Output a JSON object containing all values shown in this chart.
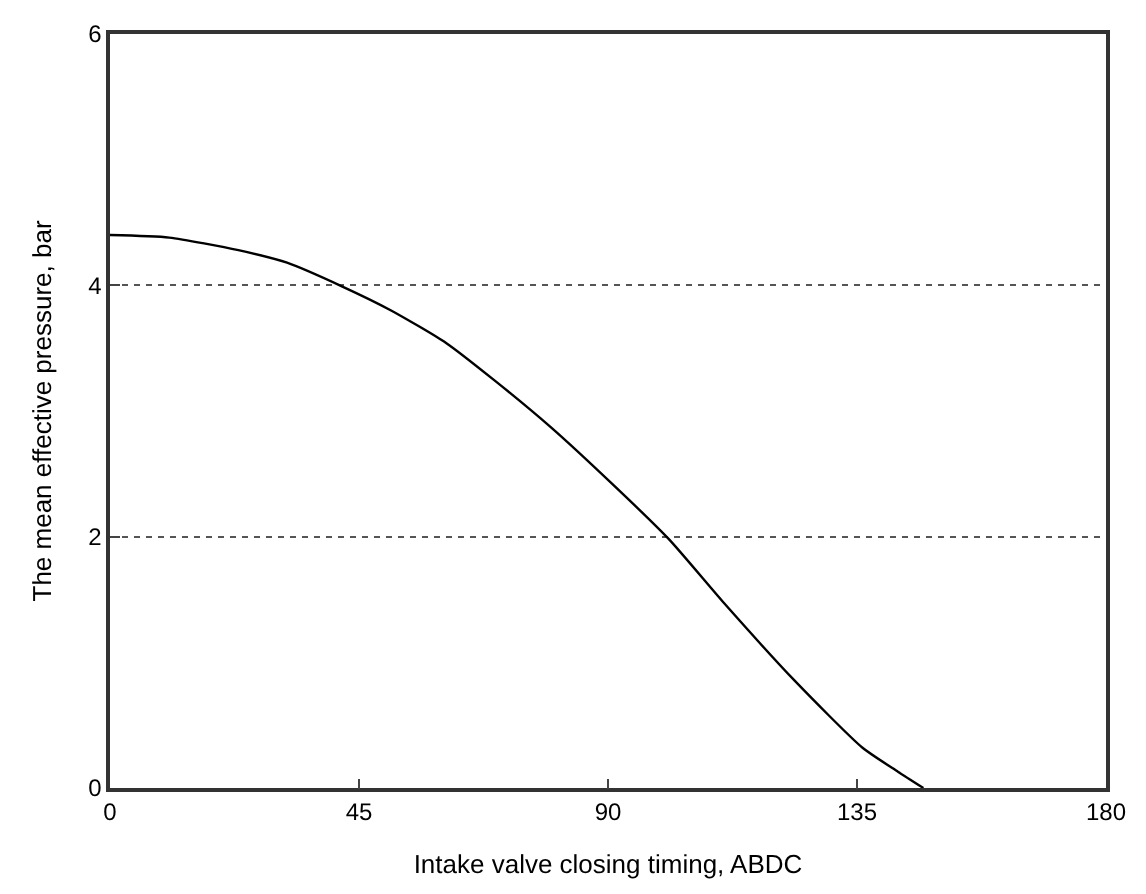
{
  "chart_data": {
    "type": "line",
    "xlabel": "Intake valve closing timing, ABDC",
    "ylabel": "The mean effective pressure, bar",
    "x": [
      0,
      10.7,
      23.2,
      32,
      42,
      50.8,
      60.8,
      69.6,
      79.7,
      91,
      101,
      111,
      123.6,
      136,
      142.4,
      147
    ],
    "series": [
      {
        "color": "#000000",
        "values": [
          4.4,
          4.38,
          4.28,
          4.18,
          3.99,
          3.8,
          3.54,
          3.24,
          2.87,
          2.41,
          1.98,
          1.47,
          0.86,
          0.32,
          0.13,
          0
        ]
      }
    ],
    "xlim": [
      0,
      180
    ],
    "xticks": [
      0,
      45,
      90,
      135,
      180
    ],
    "ylim": [
      0,
      6
    ],
    "yticks": [
      0,
      2,
      4,
      6
    ],
    "grid": "y",
    "marker": "none",
    "line_style": "solid"
  }
}
